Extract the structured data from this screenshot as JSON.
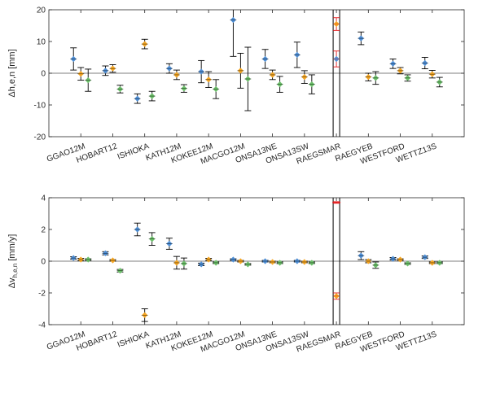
{
  "colors": {
    "blue": "#4f8fd6",
    "orange": "#f5a623",
    "green": "#6cc06a",
    "red": "#e41a1c",
    "errorbar": "#000000",
    "axis": "#262626"
  },
  "chart_data": [
    {
      "type": "scatter",
      "ylabel": "Δh,e,n [mm]",
      "ylabel_main": "Δh,e,n",
      "ylabel_unit": " [mm]",
      "ylim": [
        -20,
        20
      ],
      "yticks": [
        -20,
        -10,
        0,
        10,
        20
      ],
      "reference_line": 0,
      "categories": [
        "GGAO12M",
        "HOBART12",
        "ISHIOKA",
        "KATH12M",
        "KOKEE12M",
        "MACGO12M",
        "ONSA13NE",
        "ONSA13SW",
        "RAEGSMAR",
        "RAEGYEB",
        "WESTFORD",
        "WETTZ13S"
      ],
      "series": [
        {
          "color": "blue",
          "values": [
            4.5,
            0.8,
            -8.0,
            1.5,
            0.5,
            16.8,
            4.5,
            5.8,
            4.5,
            11.0,
            3.0,
            3.2
          ],
          "errors": [
            3.5,
            1.5,
            1.5,
            1.5,
            3.5,
            11.5,
            3.0,
            4.0,
            2.5,
            2.0,
            1.5,
            1.8
          ],
          "raegsmar_style": "red"
        },
        {
          "color": "orange",
          "values": [
            -0.2,
            1.5,
            9.2,
            -0.5,
            -2.0,
            0.8,
            -0.5,
            -1.2,
            15.5,
            -1.2,
            0.8,
            -0.3
          ],
          "errors": [
            2.0,
            1.2,
            1.5,
            1.5,
            2.5,
            5.5,
            1.5,
            2.0,
            2.0,
            1.2,
            1.0,
            1.2
          ],
          "raegsmar_style": "red"
        },
        {
          "color": "green",
          "values": [
            -2.2,
            -5.0,
            -7.2,
            -4.8,
            -5.0,
            -1.8,
            -3.5,
            -3.5,
            null,
            -1.5,
            -1.5,
            -2.8
          ],
          "errors": [
            3.5,
            1.2,
            1.5,
            1.2,
            3.0,
            10.0,
            2.5,
            3.0,
            null,
            2.0,
            1.0,
            1.5
          ]
        }
      ]
    },
    {
      "type": "scatter",
      "ylabel": "Δvh,e,n [mm/y]",
      "ylabel_main": "Δv",
      "ylabel_sub": "h,e,n",
      "ylabel_unit": " [mm/y]",
      "ylim": [
        -4,
        4
      ],
      "yticks": [
        -4,
        -2,
        0,
        2,
        4
      ],
      "reference_line": 0,
      "categories": [
        "GGAO12M",
        "HOBART12",
        "ISHIOKA",
        "KATH12M",
        "KOKEE12M",
        "MACGO12M",
        "ONSA13NE",
        "ONSA13SW",
        "RAEGSMAR",
        "RAEGYEB",
        "WESTFORD",
        "WETTZ13S"
      ],
      "series": [
        {
          "color": "blue",
          "values": [
            0.2,
            0.5,
            2.0,
            1.1,
            -0.2,
            0.1,
            0.0,
            0.0,
            3.7,
            0.35,
            0.15,
            0.25
          ],
          "errors": [
            0.08,
            0.1,
            0.4,
            0.35,
            0.08,
            0.05,
            0.05,
            0.05,
            0.05,
            0.25,
            0.08,
            0.08
          ],
          "raegsmar_style": "red"
        },
        {
          "color": "orange",
          "values": [
            0.1,
            0.05,
            -3.4,
            -0.1,
            0.1,
            0.0,
            -0.05,
            -0.05,
            -2.2,
            0.0,
            0.1,
            -0.1
          ],
          "errors": [
            0.08,
            0.05,
            0.4,
            0.4,
            0.08,
            0.05,
            0.05,
            0.05,
            0.2,
            0.1,
            0.05,
            0.05
          ],
          "raegsmar_style": "red"
        },
        {
          "color": "green",
          "values": [
            0.1,
            -0.6,
            1.4,
            -0.15,
            -0.1,
            -0.2,
            -0.1,
            -0.1,
            null,
            -0.25,
            -0.15,
            -0.1
          ],
          "errors": [
            0.05,
            0.08,
            0.4,
            0.35,
            0.05,
            0.05,
            0.05,
            0.05,
            null,
            0.2,
            0.05,
            0.05
          ]
        }
      ]
    }
  ]
}
